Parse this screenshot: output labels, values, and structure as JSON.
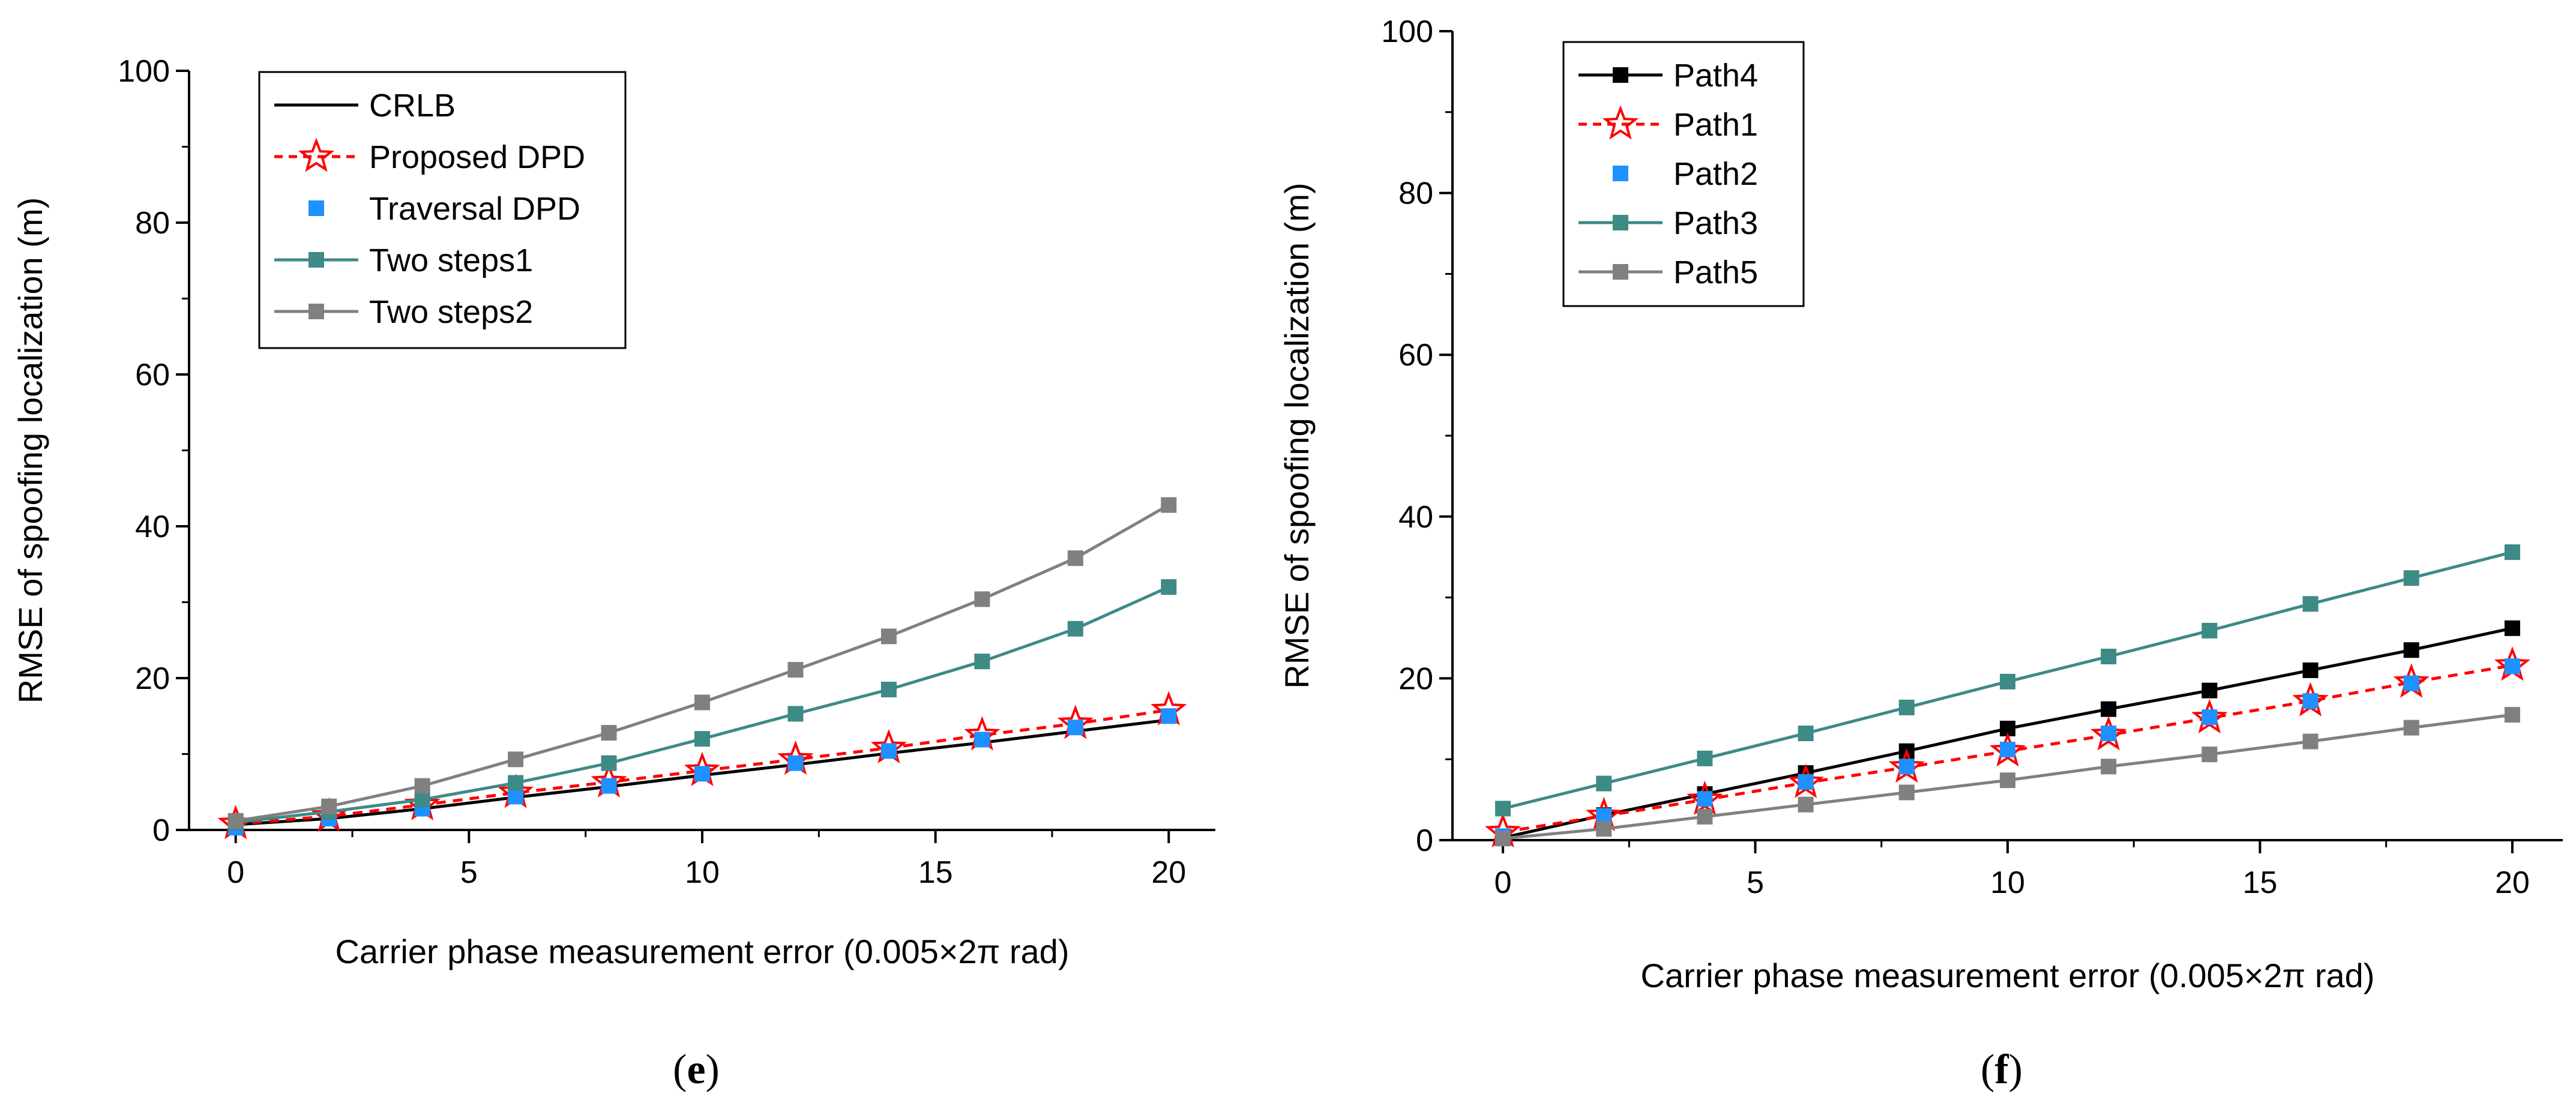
{
  "chart_data": [
    {
      "type": "line",
      "panel_label": "e",
      "xlabel": "Carrier phase measurement error (0.005×2π rad)",
      "ylabel": "RMSE of spoofing localization (m)",
      "xlim": [
        -1,
        21
      ],
      "ylim": [
        0,
        100
      ],
      "xticks": [
        0,
        5,
        10,
        15,
        20
      ],
      "yticks": [
        0,
        20,
        40,
        60,
        80,
        100
      ],
      "legend_position": "top-left",
      "x": [
        0,
        2,
        4,
        6,
        8,
        10,
        12,
        14,
        16,
        18,
        20
      ],
      "series": [
        {
          "name": "CRLB",
          "color": "#000000",
          "marker": "none",
          "line": "solid",
          "values": [
            0.7,
            1.5,
            2.8,
            4.3,
            5.7,
            7.2,
            8.6,
            10.1,
            11.5,
            13.0,
            14.5
          ]
        },
        {
          "name": "Proposed DPD",
          "color": "#ff0000",
          "marker": "star",
          "line": "dashed",
          "values": [
            0.8,
            1.8,
            3.3,
            4.9,
            6.3,
            7.8,
            9.3,
            10.8,
            12.5,
            14.0,
            15.8
          ]
        },
        {
          "name": "Traversal DPD",
          "color": "#1e90ff",
          "marker": "square",
          "line": "none",
          "values": [
            0.3,
            1.5,
            2.8,
            4.4,
            5.8,
            7.4,
            8.8,
            10.4,
            11.9,
            13.5,
            15.0
          ]
        },
        {
          "name": "Two steps1",
          "color": "#3d8a86",
          "marker": "square",
          "line": "solid",
          "values": [
            1.0,
            2.4,
            4.0,
            6.2,
            8.8,
            12.0,
            15.3,
            18.5,
            22.2,
            26.5,
            32.0
          ]
        },
        {
          "name": "Two steps2",
          "color": "#808080",
          "marker": "square",
          "line": "solid",
          "values": [
            1.2,
            3.1,
            5.8,
            9.3,
            12.8,
            16.8,
            21.1,
            25.5,
            30.4,
            35.8,
            42.8
          ]
        }
      ]
    },
    {
      "type": "line",
      "panel_label": "f",
      "xlabel": "Carrier phase measurement error (0.005×2π rad)",
      "ylabel": "RMSE of spoofing localization (m)",
      "xlim": [
        -1,
        21
      ],
      "ylim": [
        0,
        100
      ],
      "xticks": [
        0,
        5,
        10,
        15,
        20
      ],
      "yticks": [
        0,
        20,
        40,
        60,
        80,
        100
      ],
      "legend_position": "top-left",
      "x": [
        0,
        2,
        4,
        6,
        8,
        10,
        12,
        14,
        16,
        18,
        20
      ],
      "series": [
        {
          "name": "Path4",
          "color": "#000000",
          "marker": "square",
          "line": "solid",
          "values": [
            0.3,
            3.1,
            5.7,
            8.3,
            11.0,
            13.8,
            16.2,
            18.5,
            21.0,
            23.5,
            26.2
          ]
        },
        {
          "name": "Path1",
          "color": "#ff0000",
          "marker": "star",
          "line": "dashed",
          "values": [
            1.0,
            3.0,
            5.0,
            7.1,
            9.0,
            11.0,
            13.0,
            15.1,
            17.2,
            19.5,
            21.6
          ]
        },
        {
          "name": "Path2",
          "color": "#1e90ff",
          "marker": "square",
          "line": "none",
          "values": [
            0.5,
            3.0,
            5.1,
            7.2,
            9.1,
            11.2,
            13.2,
            15.2,
            17.2,
            19.4,
            21.5
          ]
        },
        {
          "name": "Path3",
          "color": "#3d8a86",
          "marker": "square",
          "line": "solid",
          "values": [
            3.9,
            7.0,
            10.1,
            13.2,
            16.4,
            19.6,
            22.7,
            25.9,
            29.2,
            32.4,
            35.6
          ]
        },
        {
          "name": "Path5",
          "color": "#808080",
          "marker": "square",
          "line": "solid",
          "values": [
            0.2,
            1.4,
            2.9,
            4.4,
            5.9,
            7.4,
            9.1,
            10.6,
            12.2,
            13.9,
            15.5
          ]
        }
      ]
    }
  ]
}
